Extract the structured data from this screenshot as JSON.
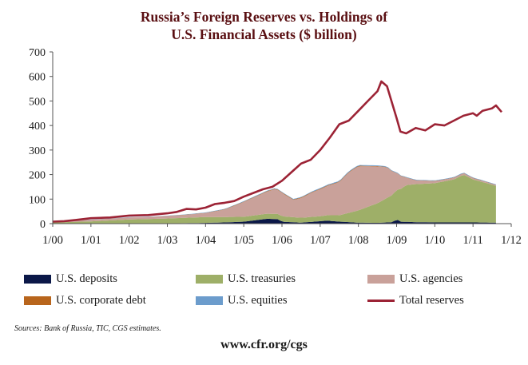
{
  "chart_data": {
    "type": "area",
    "title_lines": [
      "Russia’s Foreign Reserves vs. Holdings of",
      "U.S. Financial Assets ($ billion)"
    ],
    "y_ticks": [
      "700",
      "600",
      "500",
      "400",
      "300",
      "200",
      "100",
      "0"
    ],
    "ylim": [
      0,
      700
    ],
    "x_ticks": [
      "1/00",
      "1/01",
      "1/02",
      "1/03",
      "1/04",
      "1/05",
      "1/06",
      "1/07",
      "1/08",
      "1/09",
      "1/10",
      "1/11",
      "1/12"
    ],
    "x_start_year": 2000,
    "stacked_series_order": [
      "U.S. deposits",
      "U.S. treasuries",
      "U.S. agencies",
      "U.S. corporate debt",
      "U.S. equities"
    ],
    "legend_order": [
      "U.S. deposits",
      "U.S. treasuries",
      "U.S. agencies",
      "U.S. corporate debt",
      "U.S. equities",
      "Total reserves"
    ],
    "colors": {
      "U.S. deposits": "#0b1848",
      "U.S. treasuries": "#9eaf68",
      "U.S. agencies": "#c9a19a",
      "U.S. corporate debt": "#b8651c",
      "U.S. equities": "#6c9ccc",
      "Total reserves": "#9c2335"
    },
    "series": [
      {
        "name": "U.S. deposits",
        "points": [
          [
            2000.0,
            1
          ],
          [
            2001.0,
            1
          ],
          [
            2002.0,
            1
          ],
          [
            2003.0,
            1
          ],
          [
            2003.5,
            2
          ],
          [
            2004.0,
            3
          ],
          [
            2004.5,
            5
          ],
          [
            2005.0,
            8
          ],
          [
            2005.4,
            16
          ],
          [
            2005.6,
            20
          ],
          [
            2005.9,
            18
          ],
          [
            2006.0,
            8
          ],
          [
            2006.5,
            4
          ],
          [
            2007.0,
            10
          ],
          [
            2007.2,
            12
          ],
          [
            2007.5,
            8
          ],
          [
            2008.0,
            4
          ],
          [
            2008.5,
            3
          ],
          [
            2008.9,
            6
          ],
          [
            2009.0,
            18
          ],
          [
            2009.1,
            8
          ],
          [
            2009.5,
            6
          ],
          [
            2010.0,
            5
          ],
          [
            2011.0,
            5
          ],
          [
            2011.6,
            4
          ]
        ]
      },
      {
        "name": "U.S. treasuries",
        "points": [
          [
            2000.0,
            4
          ],
          [
            2001.0,
            8
          ],
          [
            2001.5,
            12
          ],
          [
            2002.0,
            16
          ],
          [
            2002.5,
            18
          ],
          [
            2003.0,
            20
          ],
          [
            2003.5,
            22
          ],
          [
            2004.0,
            24
          ],
          [
            2004.5,
            22
          ],
          [
            2005.0,
            20
          ],
          [
            2005.5,
            20
          ],
          [
            2006.0,
            22
          ],
          [
            2006.5,
            20
          ],
          [
            2007.0,
            20
          ],
          [
            2007.5,
            26
          ],
          [
            2008.0,
            50
          ],
          [
            2008.5,
            80
          ],
          [
            2008.75,
            100
          ],
          [
            2009.0,
            120
          ],
          [
            2009.25,
            150
          ],
          [
            2009.5,
            155
          ],
          [
            2010.0,
            160
          ],
          [
            2010.5,
            175
          ],
          [
            2010.75,
            195
          ],
          [
            2011.0,
            175
          ],
          [
            2011.25,
            165
          ],
          [
            2011.6,
            150
          ]
        ]
      },
      {
        "name": "U.S. agencies",
        "points": [
          [
            2000.0,
            4
          ],
          [
            2001.0,
            6
          ],
          [
            2001.5,
            7
          ],
          [
            2002.0,
            8
          ],
          [
            2002.5,
            8
          ],
          [
            2003.0,
            10
          ],
          [
            2003.5,
            12
          ],
          [
            2004.0,
            16
          ],
          [
            2004.5,
            30
          ],
          [
            2005.0,
            60
          ],
          [
            2005.5,
            85
          ],
          [
            2005.8,
            100
          ],
          [
            2006.0,
            95
          ],
          [
            2006.3,
            70
          ],
          [
            2006.5,
            80
          ],
          [
            2006.8,
            100
          ],
          [
            2007.0,
            110
          ],
          [
            2007.5,
            135
          ],
          [
            2007.75,
            165
          ],
          [
            2008.0,
            180
          ],
          [
            2008.5,
            150
          ],
          [
            2008.75,
            125
          ],
          [
            2009.0,
            70
          ],
          [
            2009.25,
            30
          ],
          [
            2009.5,
            15
          ],
          [
            2010.0,
            8
          ],
          [
            2011.0,
            5
          ],
          [
            2011.6,
            3
          ]
        ]
      },
      {
        "name": "U.S. corporate debt",
        "points": [
          [
            2000.0,
            0.5
          ],
          [
            2003.0,
            0.5
          ],
          [
            2004.0,
            1
          ],
          [
            2005.0,
            1.5
          ],
          [
            2006.0,
            2
          ],
          [
            2007.0,
            2
          ],
          [
            2008.0,
            2
          ],
          [
            2009.0,
            1
          ],
          [
            2010.0,
            1
          ],
          [
            2011.6,
            1
          ]
        ]
      },
      {
        "name": "U.S. equities",
        "points": [
          [
            2000.0,
            1
          ],
          [
            2003.0,
            1
          ],
          [
            2004.0,
            1.5
          ],
          [
            2005.0,
            2
          ],
          [
            2006.0,
            2
          ],
          [
            2007.0,
            3
          ],
          [
            2008.0,
            3
          ],
          [
            2008.5,
            3
          ],
          [
            2009.0,
            2
          ],
          [
            2010.0,
            2
          ],
          [
            2011.6,
            2
          ]
        ]
      },
      {
        "name": "Total reserves",
        "points": [
          [
            2000.0,
            8
          ],
          [
            2000.3,
            10
          ],
          [
            2000.6,
            15
          ],
          [
            2001.0,
            22
          ],
          [
            2001.5,
            25
          ],
          [
            2002.0,
            33
          ],
          [
            2002.5,
            35
          ],
          [
            2003.0,
            42
          ],
          [
            2003.25,
            48
          ],
          [
            2003.5,
            60
          ],
          [
            2003.75,
            58
          ],
          [
            2004.0,
            65
          ],
          [
            2004.25,
            80
          ],
          [
            2004.5,
            85
          ],
          [
            2004.75,
            92
          ],
          [
            2005.0,
            110
          ],
          [
            2005.25,
            125
          ],
          [
            2005.5,
            140
          ],
          [
            2005.75,
            150
          ],
          [
            2006.0,
            175
          ],
          [
            2006.25,
            210
          ],
          [
            2006.5,
            245
          ],
          [
            2006.75,
            260
          ],
          [
            2007.0,
            300
          ],
          [
            2007.25,
            350
          ],
          [
            2007.5,
            405
          ],
          [
            2007.75,
            420
          ],
          [
            2008.0,
            460
          ],
          [
            2008.25,
            500
          ],
          [
            2008.5,
            540
          ],
          [
            2008.6,
            580
          ],
          [
            2008.75,
            560
          ],
          [
            2009.0,
            430
          ],
          [
            2009.1,
            375
          ],
          [
            2009.25,
            368
          ],
          [
            2009.5,
            390
          ],
          [
            2009.75,
            380
          ],
          [
            2010.0,
            405
          ],
          [
            2010.25,
            400
          ],
          [
            2010.5,
            420
          ],
          [
            2010.75,
            440
          ],
          [
            2011.0,
            450
          ],
          [
            2011.1,
            440
          ],
          [
            2011.25,
            460
          ],
          [
            2011.5,
            470
          ],
          [
            2011.6,
            482
          ],
          [
            2011.75,
            455
          ]
        ]
      }
    ]
  },
  "source_note": "Sources: Bank of Russia, TIC, CGS estimates.",
  "site_url": "www.cfr.org/cgs"
}
